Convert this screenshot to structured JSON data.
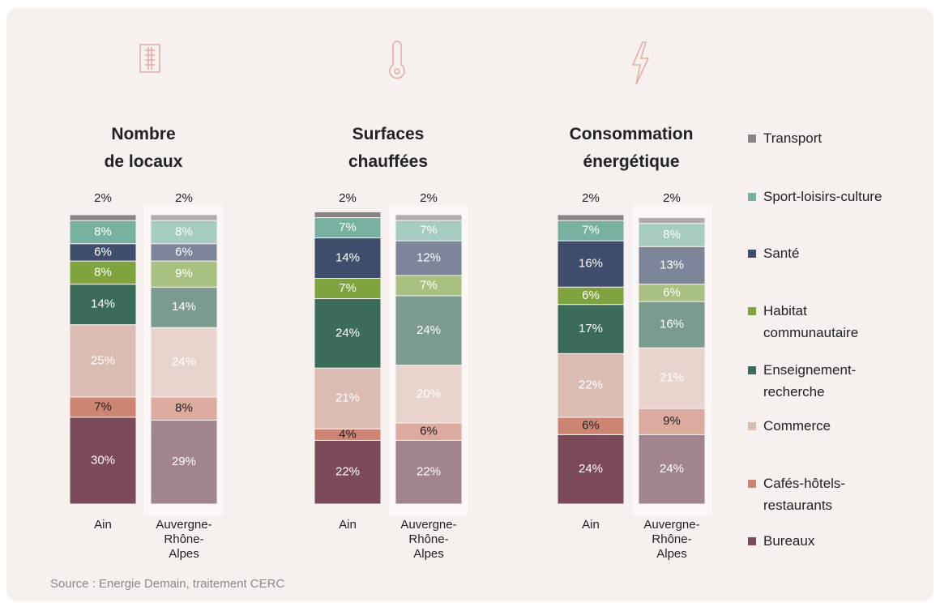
{
  "chart_data": [
    {
      "type": "bar",
      "stacked": true,
      "title": [
        "Nombre",
        "de locaux"
      ],
      "categories": [
        "Ain",
        "Auvergne-Rhône-Alpes"
      ],
      "ylim": [
        0,
        100
      ],
      "series": [
        {
          "name": "Bureaux",
          "colors": [
            "#7b4a5a",
            "#a2848f"
          ],
          "label_color": "#ffffff",
          "values": [
            30,
            29
          ],
          "value_labels": [
            "30%",
            "29%"
          ]
        },
        {
          "name": "Cafés-hôtels-restaurants",
          "colors": [
            "#cd8573",
            "#dcaa9e"
          ],
          "label_color": "#222222",
          "values": [
            7,
            8
          ],
          "value_labels": [
            "7%",
            "8%"
          ]
        },
        {
          "name": "Commerce",
          "colors": [
            "#dbbcb3",
            "#e9d3cd"
          ],
          "label_color": "#ffffff",
          "values": [
            25,
            24
          ],
          "value_labels": [
            "25%",
            "24%"
          ]
        },
        {
          "name": "Enseignement-recherche",
          "colors": [
            "#3b6c5a",
            "#7c9b8f"
          ],
          "label_color": "#ffffff",
          "values": [
            14,
            14
          ],
          "value_labels": [
            "14%",
            "14%"
          ]
        },
        {
          "name": "Habitat communautaire",
          "colors": [
            "#7fa33f",
            "#a9c180"
          ],
          "label_color": "#ffffff",
          "values": [
            8,
            9
          ],
          "value_labels": [
            "8%",
            "9%"
          ]
        },
        {
          "name": "Santé",
          "colors": [
            "#3e4e6c",
            "#7c859a"
          ],
          "label_color": "#ffffff",
          "values": [
            6,
            6
          ],
          "value_labels": [
            "6%",
            "6%"
          ]
        },
        {
          "name": "Sport-loisirs-culture",
          "colors": [
            "#78b0a1",
            "#a6cbc1"
          ],
          "label_color": "#ffffff",
          "values": [
            8,
            8
          ],
          "value_labels": [
            "8%",
            "8%"
          ]
        },
        {
          "name": "Transport",
          "colors": [
            "#8a8384",
            "#b1abac"
          ],
          "label_color": "#222222",
          "values": [
            2,
            2
          ],
          "value_labels": [
            "2%",
            "2%"
          ]
        }
      ]
    },
    {
      "type": "bar",
      "stacked": true,
      "title": [
        "Surfaces",
        "chauffées"
      ],
      "categories": [
        "Ain",
        "Auvergne-Rhône-Alpes"
      ],
      "ylim": [
        0,
        100
      ],
      "series": [
        {
          "name": "Bureaux",
          "colors": [
            "#7b4a5a",
            "#a2848f"
          ],
          "label_color": "#ffffff",
          "values": [
            22,
            22
          ],
          "value_labels": [
            "22%",
            "22%"
          ]
        },
        {
          "name": "Cafés-hôtels-restaurants",
          "colors": [
            "#cd8573",
            "#dcaa9e"
          ],
          "label_color": "#222222",
          "values": [
            4,
            6
          ],
          "value_labels": [
            "4%",
            "6%"
          ]
        },
        {
          "name": "Commerce",
          "colors": [
            "#dbbcb3",
            "#e9d3cd"
          ],
          "label_color": "#ffffff",
          "values": [
            21,
            20
          ],
          "value_labels": [
            "21%",
            "20%"
          ]
        },
        {
          "name": "Enseignement-recherche",
          "colors": [
            "#3b6c5a",
            "#7c9b8f"
          ],
          "label_color": "#ffffff",
          "values": [
            24,
            24
          ],
          "value_labels": [
            "24%",
            "24%"
          ]
        },
        {
          "name": "Habitat communautaire",
          "colors": [
            "#7fa33f",
            "#a9c180"
          ],
          "label_color": "#ffffff",
          "values": [
            7,
            7
          ],
          "value_labels": [
            "7%",
            "7%"
          ]
        },
        {
          "name": "Santé",
          "colors": [
            "#3e4e6c",
            "#7c859a"
          ],
          "label_color": "#ffffff",
          "values": [
            14,
            12
          ],
          "value_labels": [
            "14%",
            "12%"
          ]
        },
        {
          "name": "Sport-loisirs-culture",
          "colors": [
            "#78b0a1",
            "#a6cbc1"
          ],
          "label_color": "#ffffff",
          "values": [
            7,
            7
          ],
          "value_labels": [
            "7%",
            "7%"
          ]
        },
        {
          "name": "Transport",
          "colors": [
            "#8a8384",
            "#b1abac"
          ],
          "label_color": "#222222",
          "values": [
            2,
            2
          ],
          "value_labels": [
            "2%",
            "2%"
          ]
        }
      ]
    },
    {
      "type": "bar",
      "stacked": true,
      "title": [
        "Consommation",
        "énergétique"
      ],
      "categories": [
        "Ain",
        "Auvergne-Rhône-Alpes"
      ],
      "ylim": [
        0,
        100
      ],
      "series": [
        {
          "name": "Bureaux",
          "colors": [
            "#7b4a5a",
            "#a2848f"
          ],
          "label_color": "#ffffff",
          "values": [
            24,
            24
          ],
          "value_labels": [
            "24%",
            "24%"
          ]
        },
        {
          "name": "Cafés-hôtels-restaurants",
          "colors": [
            "#cd8573",
            "#dcaa9e"
          ],
          "label_color": "#222222",
          "values": [
            6,
            9
          ],
          "value_labels": [
            "6%",
            "9%"
          ]
        },
        {
          "name": "Commerce",
          "colors": [
            "#dbbcb3",
            "#e9d3cd"
          ],
          "label_color": "#ffffff",
          "values": [
            22,
            21
          ],
          "value_labels": [
            "22%",
            "21%"
          ]
        },
        {
          "name": "Enseignement-recherche",
          "colors": [
            "#3b6c5a",
            "#7c9b8f"
          ],
          "label_color": "#ffffff",
          "values": [
            17,
            16
          ],
          "value_labels": [
            "17%",
            "16%"
          ]
        },
        {
          "name": "Habitat communautaire",
          "colors": [
            "#7fa33f",
            "#a9c180"
          ],
          "label_color": "#ffffff",
          "values": [
            6,
            6
          ],
          "value_labels": [
            "6%",
            "6%"
          ]
        },
        {
          "name": "Santé",
          "colors": [
            "#3e4e6c",
            "#7c859a"
          ],
          "label_color": "#ffffff",
          "values": [
            16,
            13
          ],
          "value_labels": [
            "16%",
            "13%"
          ]
        },
        {
          "name": "Sport-loisirs-culture",
          "colors": [
            "#78b0a1",
            "#a6cbc1"
          ],
          "label_color": "#ffffff",
          "values": [
            7,
            8
          ],
          "value_labels": [
            "7%",
            "8%"
          ]
        },
        {
          "name": "Transport",
          "colors": [
            "#8a8384",
            "#b1abac"
          ],
          "label_color": "#222222",
          "values": [
            2,
            2
          ],
          "value_labels": [
            "2%",
            "2%"
          ]
        }
      ]
    }
  ],
  "source": "Source : Energie Demain, traitement CERC"
}
